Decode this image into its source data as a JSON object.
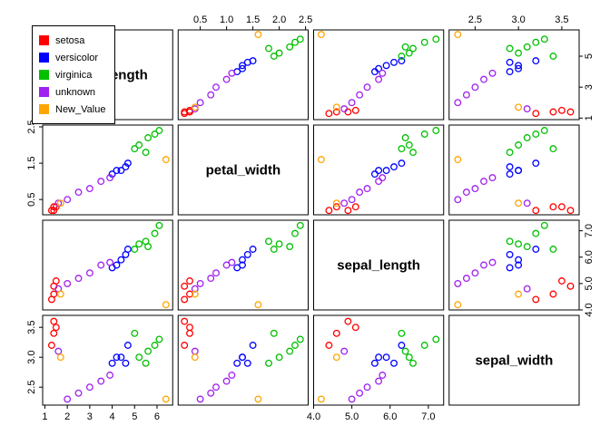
{
  "chart_data": {
    "type": "scatter",
    "subtype": "scatterplot_matrix",
    "title": "",
    "point_style": "open-circle",
    "background": "#ffffff",
    "grid": false,
    "legend_position": "top-left",
    "columns": [
      "petal_length",
      "petal_width",
      "sepal_length",
      "sepal_width"
    ],
    "variables": [
      {
        "name": "petal_length",
        "min": 0.9,
        "max": 6.7,
        "ticks_main": [
          "1",
          "2",
          "3",
          "4",
          "5",
          "6"
        ],
        "ticks_side": [
          "1",
          "3",
          "5"
        ],
        "main_axis": "bottom",
        "side_axis": "right"
      },
      {
        "name": "petal_width",
        "min": 0.08,
        "max": 2.55,
        "ticks_main": [
          "0.5",
          "1.0",
          "1.5",
          "2.0",
          "2.5"
        ],
        "ticks_side": [
          "0.5",
          "1.5",
          "2.5"
        ],
        "main_axis": "top",
        "side_axis": "left"
      },
      {
        "name": "sepal_length",
        "min": 4.0,
        "max": 7.4,
        "ticks_main": [
          "4.0",
          "5.0",
          "6.0",
          "7.0"
        ],
        "ticks_side": [
          "4.0",
          "5.0",
          "6.0",
          "7.0"
        ],
        "main_axis": "bottom",
        "side_axis": "right"
      },
      {
        "name": "sepal_width",
        "min": 2.2,
        "max": 3.7,
        "ticks_main": [
          "2.5",
          "3.0",
          "3.5"
        ],
        "ticks_side": [
          "2.5",
          "3.0",
          "3.5"
        ],
        "main_axis": "top",
        "side_axis": "left"
      }
    ],
    "series": [
      {
        "name": "setosa",
        "color": "#FF0000",
        "points": [
          [
            1.3,
            0.2,
            4.4,
            3.2
          ],
          [
            1.4,
            0.2,
            4.9,
            3.6
          ],
          [
            1.5,
            0.3,
            5.1,
            3.5
          ],
          [
            1.4,
            0.3,
            4.6,
            3.4
          ]
        ]
      },
      {
        "name": "versicolor",
        "color": "#0000FF",
        "points": [
          [
            4.0,
            1.2,
            5.6,
            2.9
          ],
          [
            4.4,
            1.3,
            5.9,
            3.0
          ],
          [
            4.6,
            1.4,
            6.1,
            2.9
          ],
          [
            4.7,
            1.5,
            6.3,
            3.2
          ],
          [
            4.2,
            1.3,
            5.7,
            3.0
          ]
        ]
      },
      {
        "name": "virginica",
        "color": "#00C000",
        "points": [
          [
            5.2,
            2.0,
            6.5,
            3.0
          ],
          [
            5.6,
            2.2,
            6.4,
            3.1
          ],
          [
            5.9,
            2.3,
            6.9,
            3.2
          ],
          [
            6.1,
            2.4,
            7.2,
            3.3
          ],
          [
            5.5,
            1.8,
            6.6,
            2.9
          ],
          [
            5.0,
            1.9,
            6.3,
            3.4
          ]
        ]
      },
      {
        "name": "unknown",
        "color": "#A020F0",
        "points": [
          [
            2.0,
            0.5,
            5.0,
            2.3
          ],
          [
            3.0,
            0.8,
            5.4,
            2.5
          ],
          [
            3.5,
            1.0,
            5.7,
            2.6
          ],
          [
            3.9,
            1.1,
            5.8,
            2.7
          ],
          [
            2.5,
            0.7,
            5.2,
            2.4
          ],
          [
            1.6,
            0.4,
            4.8,
            3.1
          ]
        ]
      },
      {
        "name": "New_Value",
        "color": "#FFA500",
        "points": [
          [
            6.4,
            1.6,
            4.2,
            2.3
          ],
          [
            1.7,
            0.4,
            4.6,
            3.0
          ]
        ]
      }
    ],
    "legend": {
      "items": [
        "setosa",
        "versicolor",
        "virginica",
        "unknown",
        "New_Value"
      ]
    }
  }
}
